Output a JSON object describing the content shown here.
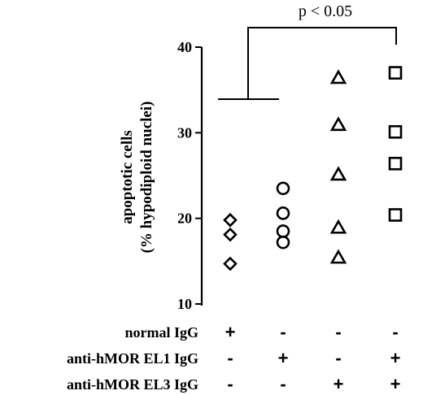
{
  "chart_data": {
    "type": "scatter",
    "ylabel_line1": "apoptotic cells",
    "ylabel_line2": "(% hypodiploid nuclei)",
    "ylim": [
      10,
      40
    ],
    "yticks": [
      10,
      20,
      30,
      40
    ],
    "significance": "p < 0.05",
    "groups": [
      {
        "marker": "diamond",
        "values": [
          19.8,
          18.1,
          14.7
        ]
      },
      {
        "marker": "circle",
        "values": [
          23.5,
          20.6,
          18.5,
          17.2
        ]
      },
      {
        "marker": "triangle",
        "values": [
          36.4,
          30.9,
          25.1,
          18.9,
          15.4
        ]
      },
      {
        "marker": "square",
        "values": [
          37.0,
          30.1,
          26.4,
          20.4
        ]
      }
    ],
    "conditions": [
      {
        "label": "normal IgG",
        "signs": [
          "+",
          "-",
          "-",
          "-"
        ]
      },
      {
        "label": "anti-hMOR EL1 IgG",
        "signs": [
          "-",
          "+",
          "-",
          "+"
        ]
      },
      {
        "label": "anti-hMOR EL3 IgG",
        "signs": [
          "-",
          "-",
          "+",
          "+"
        ]
      }
    ]
  }
}
